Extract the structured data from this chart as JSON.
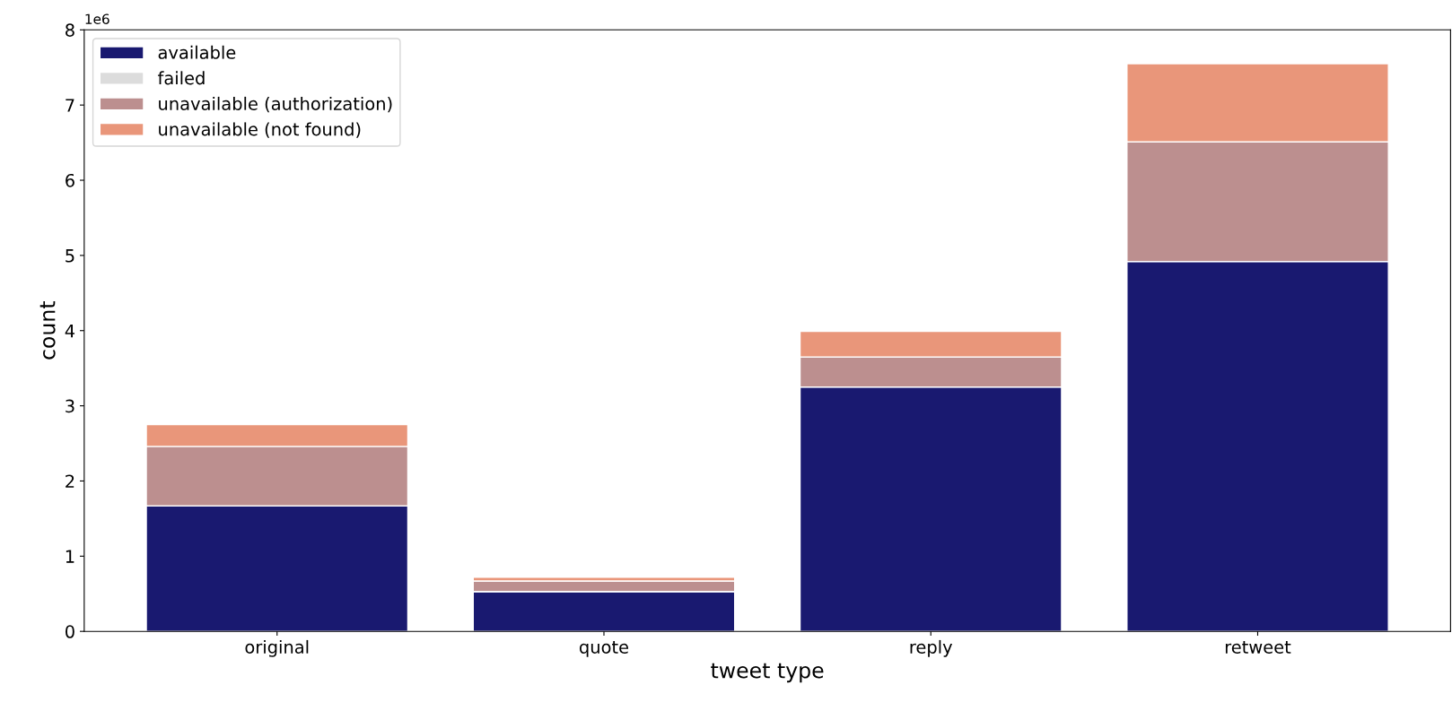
{
  "chart_data": {
    "type": "bar",
    "stacked": true,
    "xlabel": "tweet type",
    "ylabel": "count",
    "categories": [
      "original",
      "quote",
      "reply",
      "retweet"
    ],
    "series": [
      {
        "name": "available",
        "color": "#191970",
        "values": [
          1.67,
          0.53,
          3.25,
          4.92
        ]
      },
      {
        "name": "failed",
        "color": "#dcdcdc",
        "values": [
          null,
          null,
          null,
          null
        ]
      },
      {
        "name": "unavailable (authorization)",
        "color": "#bc8f8f",
        "values": [
          0.79,
          0.14,
          0.4,
          1.59
        ]
      },
      {
        "name": "unavailable (not found)",
        "color": "#e9967a",
        "values": [
          0.29,
          0.05,
          0.34,
          1.04
        ]
      }
    ],
    "ylim": [
      0,
      8
    ],
    "yticks": [
      0,
      1,
      2,
      3,
      4,
      5,
      6,
      7,
      8
    ],
    "annotations": [
      "1e6"
    ],
    "legend": "top left",
    "grid": false
  }
}
